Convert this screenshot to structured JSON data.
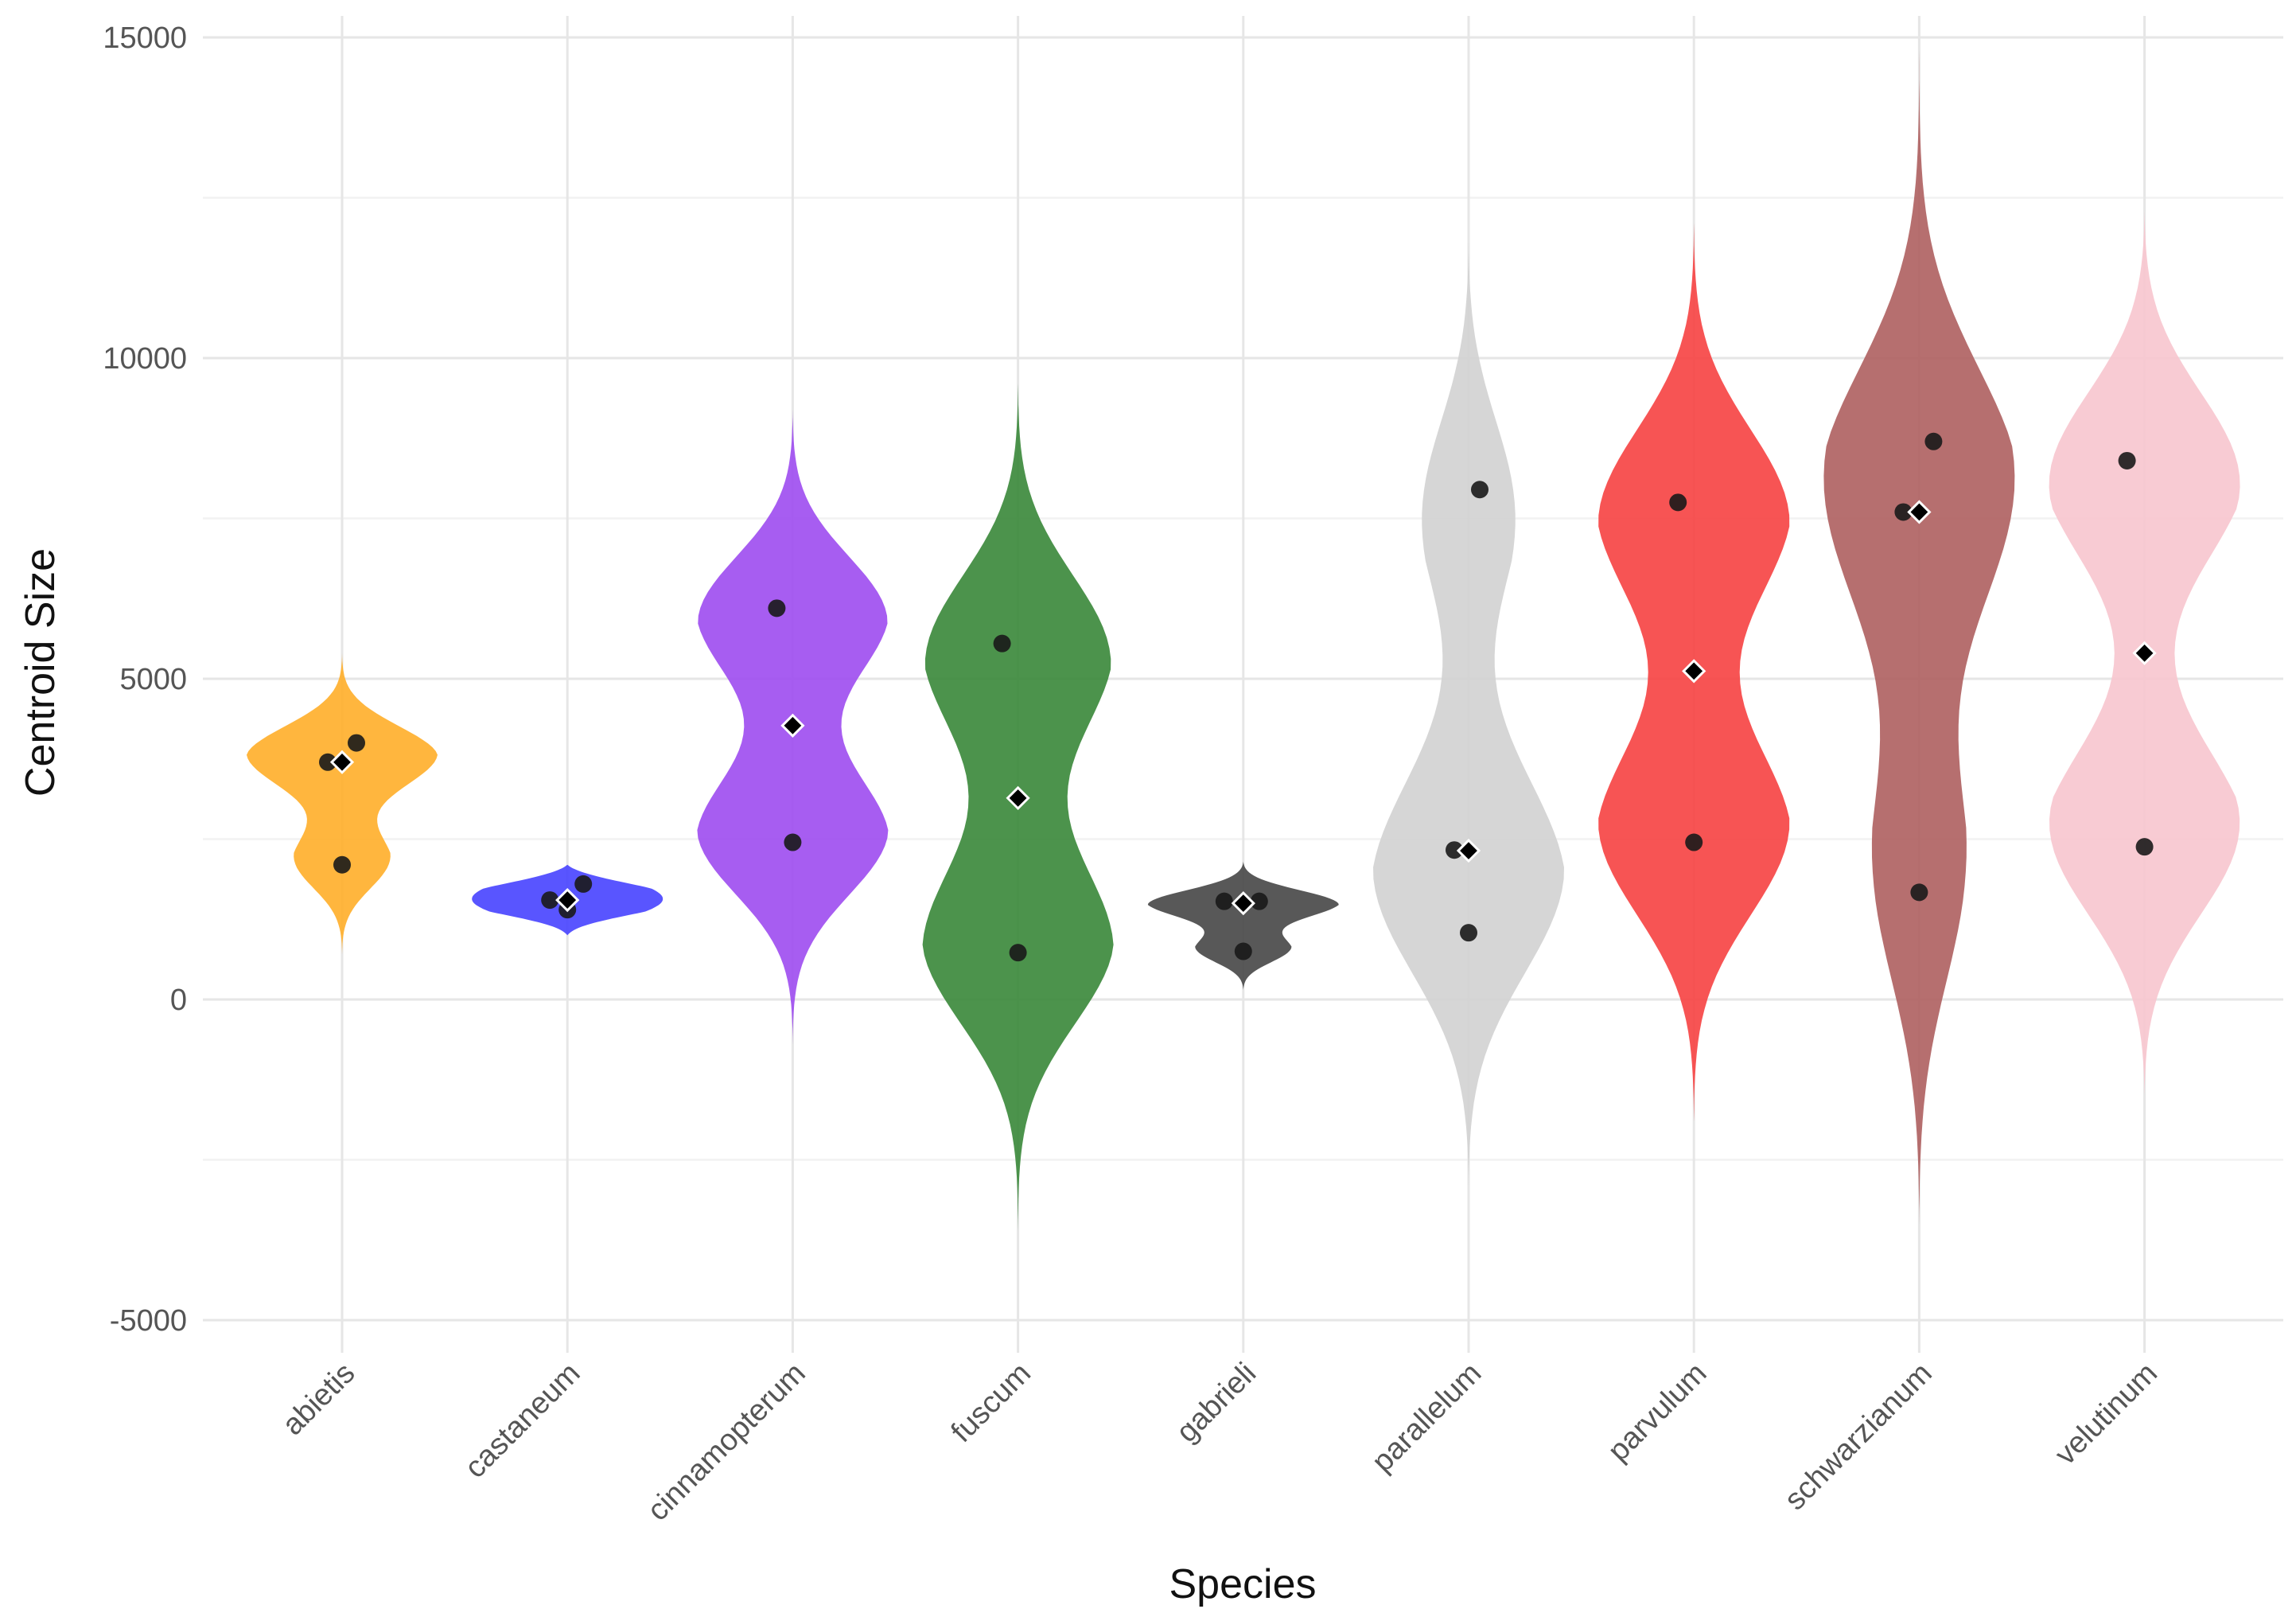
{
  "chart_data": {
    "type": "violin",
    "title": "",
    "xlabel": "Species",
    "ylabel": "Centroid Size",
    "ylim": [
      -5500,
      15000
    ],
    "yticks": [
      -5000,
      0,
      5000,
      10000,
      15000
    ],
    "ytick_labels": [
      "-5000",
      "0",
      "5000",
      "10000",
      "15000"
    ],
    "grid": true,
    "legend": "none",
    "categories": [
      "abietis",
      "castaneum",
      "cinnamopterum",
      "fuscum",
      "gabrieli",
      "parallelum",
      "parvulum",
      "schwarzianum",
      "velutinum"
    ],
    "series": [
      {
        "name": "abietis",
        "color": "#ffb02e",
        "points": [
          3700,
          4000,
          2100
        ],
        "mean": 3700,
        "range": [
          700,
          5400
        ]
      },
      {
        "name": "castaneum",
        "color": "#4b47ff",
        "points": [
          1550,
          1800,
          1400
        ],
        "mean": 1550,
        "range": [
          1000,
          2100
        ]
      },
      {
        "name": "cinnamopterum",
        "color": "#a04ff0",
        "points": [
          6100,
          2450
        ],
        "mean": 4270,
        "range": [
          -700,
          9200
        ]
      },
      {
        "name": "fuscum",
        "color": "#3d8a3d",
        "points": [
          5550,
          730
        ],
        "mean": 3140,
        "range": [
          -3600,
          9600
        ]
      },
      {
        "name": "gabrieli",
        "color": "#4a4a4a",
        "points": [
          1530,
          1530,
          750
        ],
        "mean": 1500,
        "range": [
          150,
          2150
        ]
      },
      {
        "name": "parallelum",
        "color": "#d3d3d3",
        "points": [
          2330,
          7950,
          1040
        ],
        "mean": 2320,
        "range": [
          -2900,
          11800
        ]
      },
      {
        "name": "parvulum",
        "color": "#f64545",
        "points": [
          7750,
          2450
        ],
        "mean": 5120,
        "range": [
          -1900,
          12100
        ]
      },
      {
        "name": "schwarzianum",
        "color": "#b06363",
        "points": [
          7600,
          8700,
          1670
        ],
        "mean": 7600,
        "range": [
          -3500,
          14800
        ]
      },
      {
        "name": "velutinum",
        "color": "#f7c7cf",
        "points": [
          8400,
          2380
        ],
        "mean": 5400,
        "range": [
          -1500,
          12300
        ]
      }
    ]
  }
}
